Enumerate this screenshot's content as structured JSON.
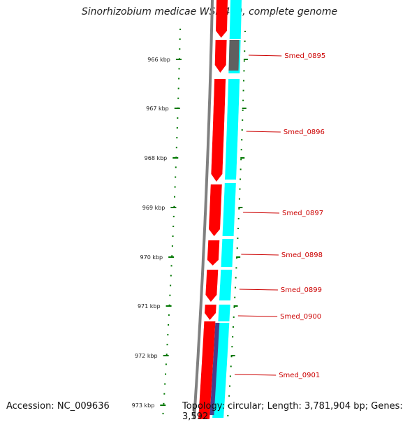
{
  "title": "Sinorhizobium medicae WSM419, complete genome",
  "accession": "Accession: NC_009636",
  "stats": "Topology: circular; Length: 3,781,904 bp; Genes: 3,592",
  "colors": {
    "backbone": "#808080",
    "forward_gene": "#ff0000",
    "reverse_gene": "#00ffff",
    "gray_feature": "#606060",
    "purple_feature": "#483d8b",
    "tick": "#007700",
    "label": "#cc0000"
  },
  "scale": {
    "ticks": [
      {
        "label": "966 kbp"
      },
      {
        "label": "967 kbp"
      },
      {
        "label": "968 kbp"
      },
      {
        "label": "969 kbp"
      },
      {
        "label": "970 kbp"
      },
      {
        "label": "971 kbp"
      },
      {
        "label": "972 kbp"
      },
      {
        "label": "973 kbp"
      }
    ]
  },
  "genes": [
    {
      "name": "Smed_0895"
    },
    {
      "name": "Smed_0896"
    },
    {
      "name": "Smed_0897"
    },
    {
      "name": "Smed_0898"
    },
    {
      "name": "Smed_0899"
    },
    {
      "name": "Smed_0900"
    },
    {
      "name": "Smed_0901"
    }
  ]
}
